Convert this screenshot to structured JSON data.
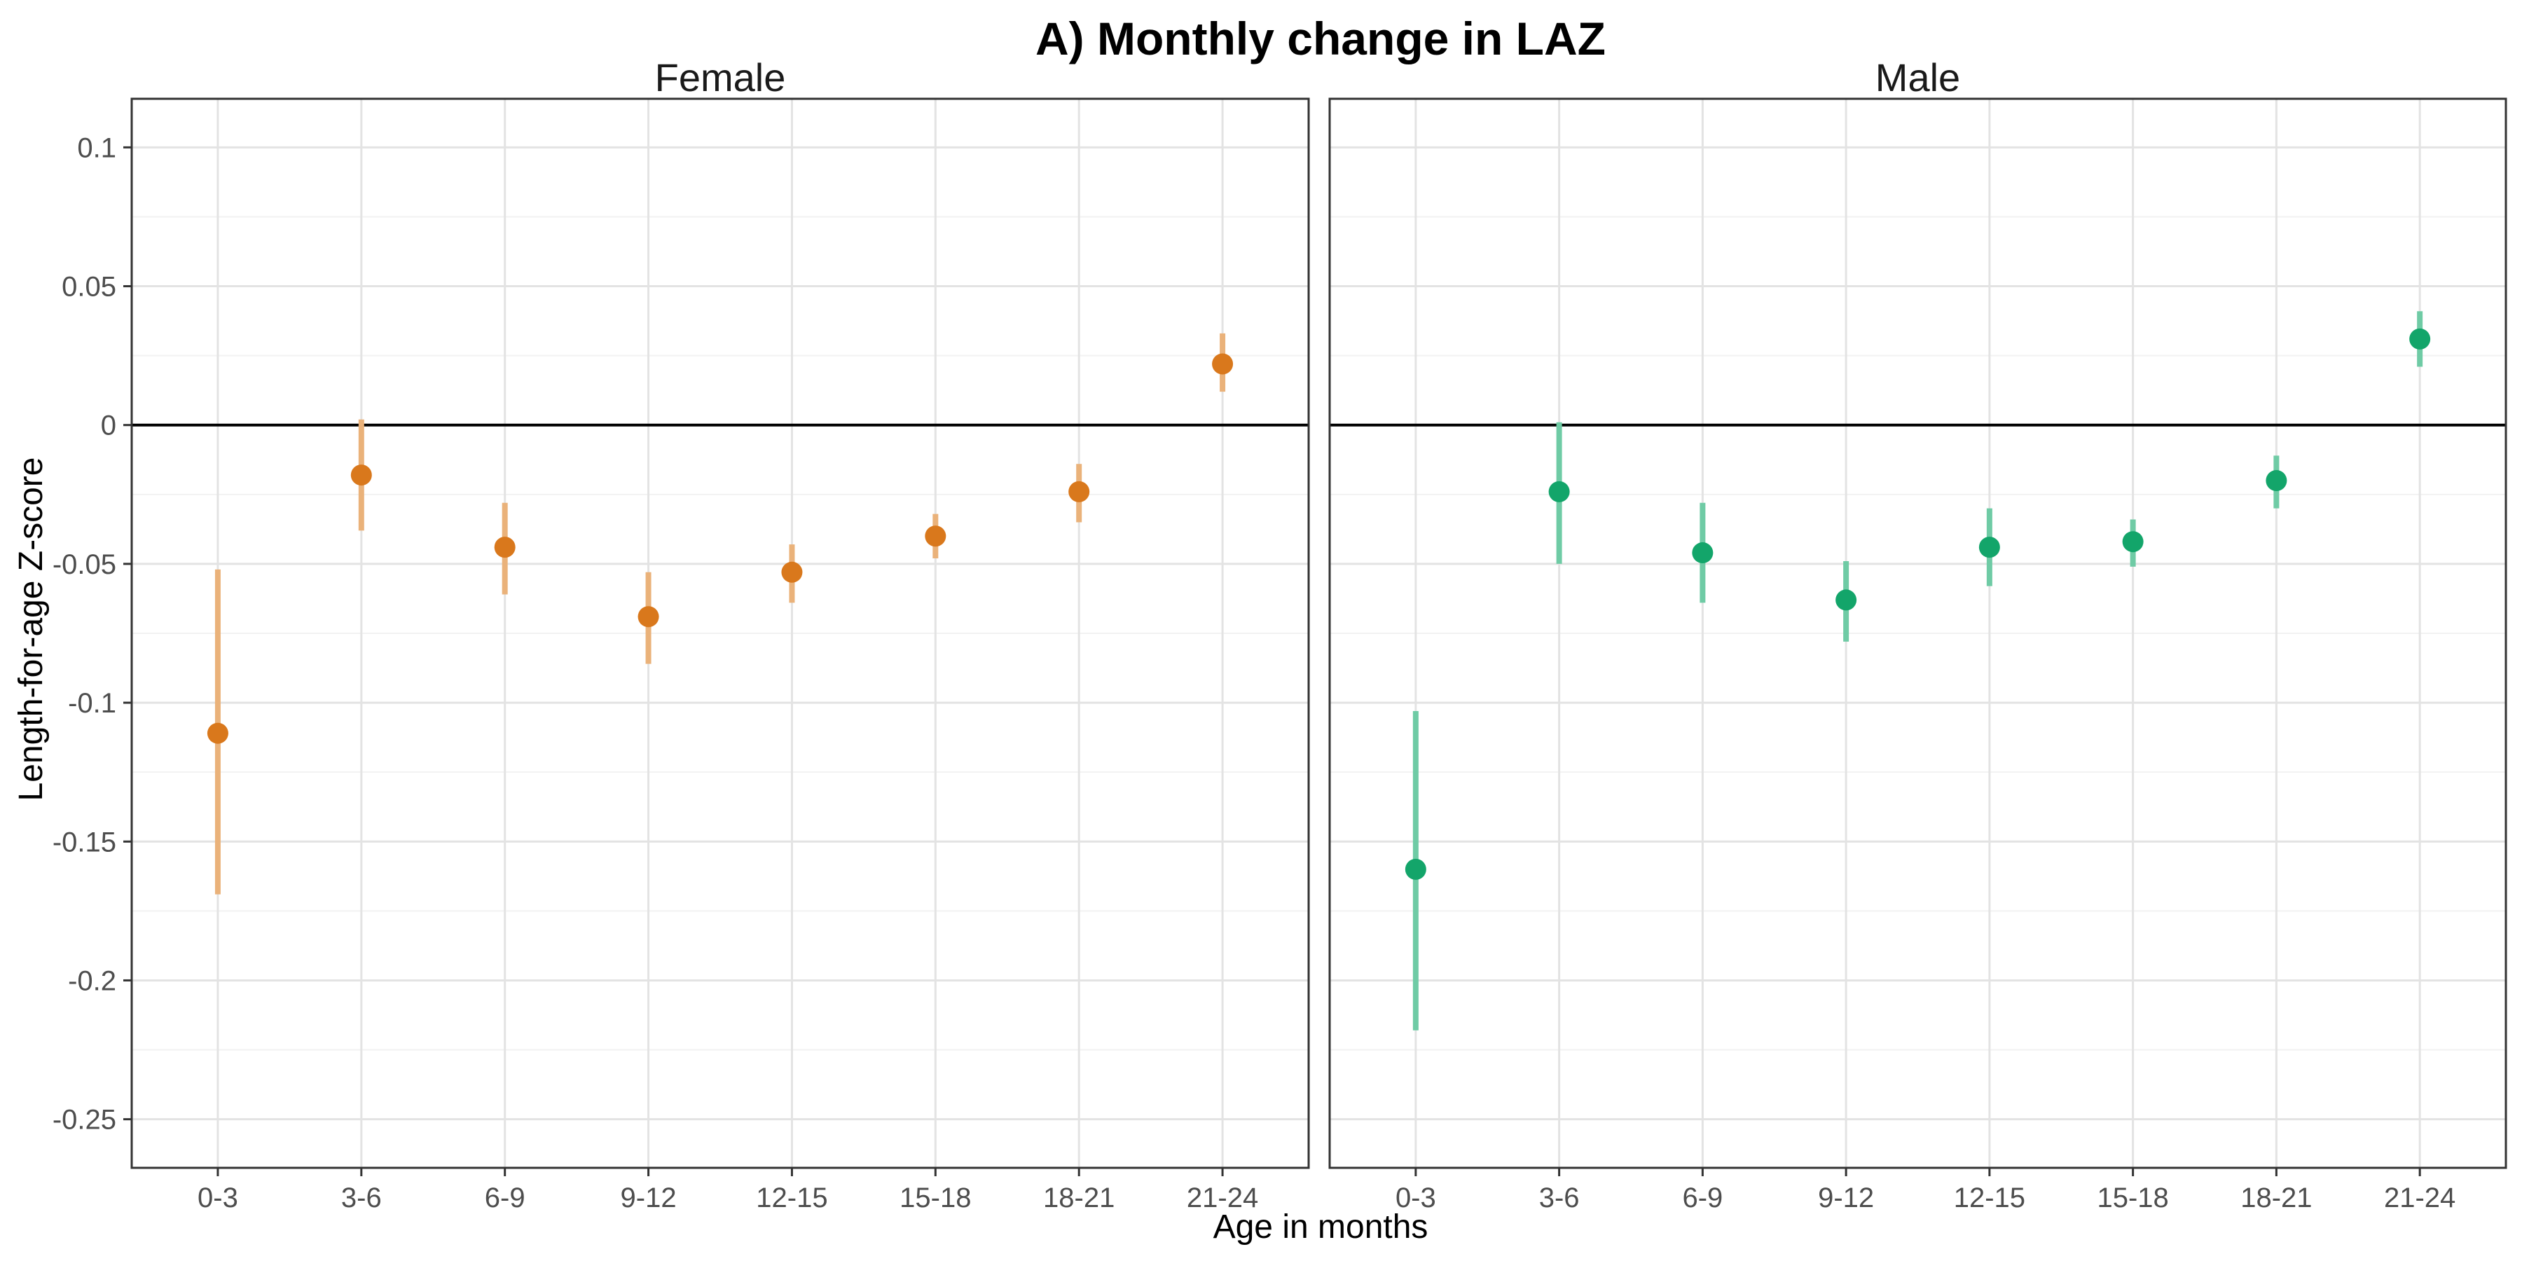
{
  "chart_data": {
    "type": "scatter",
    "title": "A) Monthly change in LAZ",
    "xlabel": "Age in months",
    "ylabel": "Length-for-age Z-score",
    "categories": [
      "0-3",
      "3-6",
      "6-9",
      "9-12",
      "12-15",
      "15-18",
      "18-21",
      "21-24"
    ],
    "ylim": [
      -0.2675,
      0.1175
    ],
    "yticks": [
      0.1,
      0.05,
      0,
      -0.05,
      -0.1,
      -0.15,
      -0.2,
      -0.25
    ],
    "ytick_labels": [
      "0.1",
      "0.05",
      "0",
      "-0.05",
      "-0.1",
      "-0.15",
      "-0.2",
      "-0.25"
    ],
    "reference_line": 0,
    "grid": true,
    "panels": [
      {
        "name": "Female",
        "color": "#d9781c",
        "error_color": "#eab27a",
        "values": [
          -0.111,
          -0.018,
          -0.044,
          -0.069,
          -0.053,
          -0.04,
          -0.024,
          0.022
        ],
        "lower": [
          -0.169,
          -0.038,
          -0.061,
          -0.086,
          -0.064,
          -0.048,
          -0.035,
          0.012
        ],
        "upper": [
          -0.052,
          0.002,
          -0.028,
          -0.053,
          -0.043,
          -0.032,
          -0.014,
          0.033
        ]
      },
      {
        "name": "Male",
        "color": "#13a56a",
        "error_color": "#6fcba5",
        "values": [
          -0.16,
          -0.024,
          -0.046,
          -0.063,
          -0.044,
          -0.042,
          -0.02,
          0.031
        ],
        "lower": [
          -0.218,
          -0.05,
          -0.064,
          -0.078,
          -0.058,
          -0.051,
          -0.03,
          0.021
        ],
        "upper": [
          -0.103,
          0.001,
          -0.028,
          -0.049,
          -0.03,
          -0.034,
          -0.011,
          0.041
        ]
      }
    ]
  }
}
